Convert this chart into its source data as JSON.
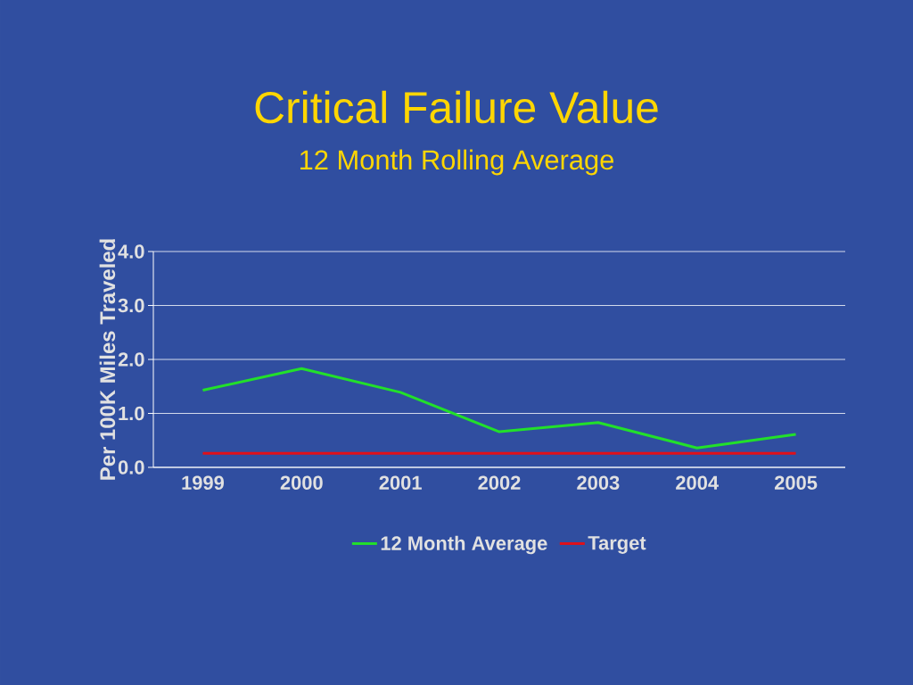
{
  "chart_data": {
    "type": "line",
    "title": "Critical Failure Value",
    "subtitle": "12 Month Rolling Average",
    "ylabel": "Per 100K Miles Traveled",
    "categories": [
      "1999",
      "2000",
      "2001",
      "2002",
      "2003",
      "2004",
      "2005"
    ],
    "series": [
      {
        "name": "12 Month Average",
        "color": "#22e02a",
        "values": [
          1.43,
          1.83,
          1.39,
          0.66,
          0.83,
          0.36,
          0.61
        ]
      },
      {
        "name": "Target",
        "color": "#e0101a",
        "values": [
          0.26,
          0.26,
          0.26,
          0.26,
          0.26,
          0.26,
          0.26
        ]
      }
    ],
    "ylim": [
      0,
      4
    ],
    "yticks": [
      {
        "value": 0,
        "label": "0.0"
      },
      {
        "value": 1,
        "label": "1.0"
      },
      {
        "value": 2,
        "label": "2.0"
      },
      {
        "value": 3,
        "label": "3.0"
      },
      {
        "value": 4,
        "label": "4.0"
      }
    ],
    "grid": "y",
    "legend": "bottom",
    "marker": "none",
    "line_style": "solid"
  }
}
